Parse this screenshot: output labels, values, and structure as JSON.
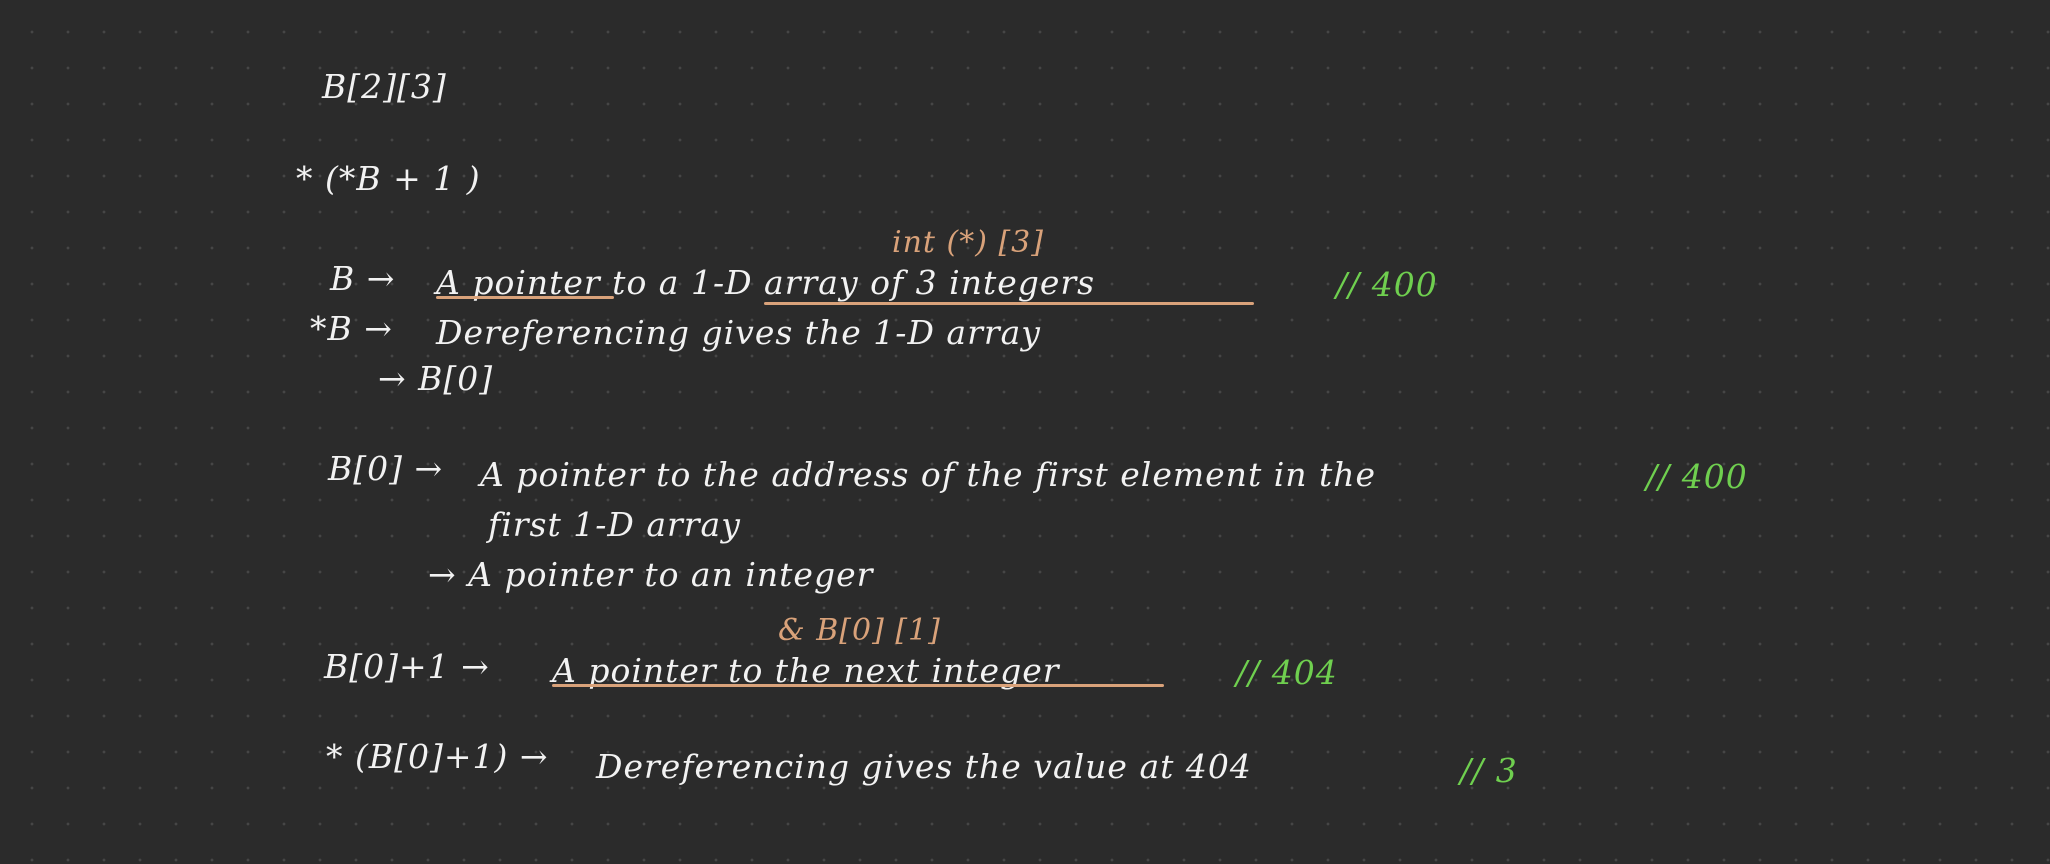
{
  "colors": {
    "background": "#2b2b2b",
    "ink": "#f2f2f2",
    "annotation": "#d9a27a",
    "comment": "#6fcf4f"
  },
  "notes": {
    "declaration": "B[2][3]",
    "expression": "* (*B + 1 )",
    "b_def": {
      "lhs": "B →",
      "text": "A pointer to a 1-D array of 3 integers",
      "annotation": "int (*) [3]",
      "comment": "// 400"
    },
    "deref_b": {
      "lhs": "*B →",
      "text": "Dereferencing gives the 1-D array",
      "line2": "→ B[0]"
    },
    "b0_def": {
      "lhs": "B[0] →",
      "text": "A pointer to the address of the first element in the",
      "text_cont": "first 1-D array",
      "comment": "// 400",
      "line3": "→ A pointer to an integer"
    },
    "b0_plus1": {
      "annotation": "& B[0] [1]",
      "lhs": "B[0]+1 →",
      "text": "A pointer to the next integer",
      "comment": "// 404"
    },
    "deref_b0_plus1": {
      "lhs": "* (B[0]+1) →",
      "text": "Dereferencing gives the value at 404",
      "comment": "// 3"
    }
  }
}
